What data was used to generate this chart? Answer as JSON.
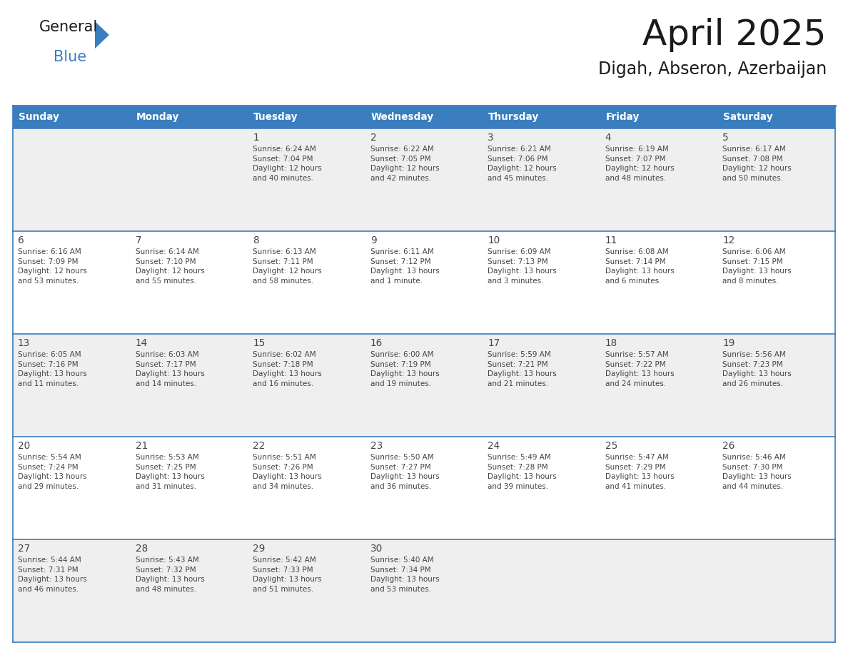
{
  "title": "April 2025",
  "subtitle": "Digah, Abseron, Azerbaijan",
  "header_color": "#3A7EBF",
  "header_text_color": "#FFFFFF",
  "row_colors": [
    "#EFEFEF",
    "#FFFFFF",
    "#EFEFEF",
    "#FFFFFF",
    "#EFEFEF"
  ],
  "border_color": "#3A7EBF",
  "text_color": "#444444",
  "weekdays": [
    "Sunday",
    "Monday",
    "Tuesday",
    "Wednesday",
    "Thursday",
    "Friday",
    "Saturday"
  ],
  "calendar": [
    [
      {
        "day": null,
        "info": null
      },
      {
        "day": null,
        "info": null
      },
      {
        "day": 1,
        "info": "Sunrise: 6:24 AM\nSunset: 7:04 PM\nDaylight: 12 hours\nand 40 minutes."
      },
      {
        "day": 2,
        "info": "Sunrise: 6:22 AM\nSunset: 7:05 PM\nDaylight: 12 hours\nand 42 minutes."
      },
      {
        "day": 3,
        "info": "Sunrise: 6:21 AM\nSunset: 7:06 PM\nDaylight: 12 hours\nand 45 minutes."
      },
      {
        "day": 4,
        "info": "Sunrise: 6:19 AM\nSunset: 7:07 PM\nDaylight: 12 hours\nand 48 minutes."
      },
      {
        "day": 5,
        "info": "Sunrise: 6:17 AM\nSunset: 7:08 PM\nDaylight: 12 hours\nand 50 minutes."
      }
    ],
    [
      {
        "day": 6,
        "info": "Sunrise: 6:16 AM\nSunset: 7:09 PM\nDaylight: 12 hours\nand 53 minutes."
      },
      {
        "day": 7,
        "info": "Sunrise: 6:14 AM\nSunset: 7:10 PM\nDaylight: 12 hours\nand 55 minutes."
      },
      {
        "day": 8,
        "info": "Sunrise: 6:13 AM\nSunset: 7:11 PM\nDaylight: 12 hours\nand 58 minutes."
      },
      {
        "day": 9,
        "info": "Sunrise: 6:11 AM\nSunset: 7:12 PM\nDaylight: 13 hours\nand 1 minute."
      },
      {
        "day": 10,
        "info": "Sunrise: 6:09 AM\nSunset: 7:13 PM\nDaylight: 13 hours\nand 3 minutes."
      },
      {
        "day": 11,
        "info": "Sunrise: 6:08 AM\nSunset: 7:14 PM\nDaylight: 13 hours\nand 6 minutes."
      },
      {
        "day": 12,
        "info": "Sunrise: 6:06 AM\nSunset: 7:15 PM\nDaylight: 13 hours\nand 8 minutes."
      }
    ],
    [
      {
        "day": 13,
        "info": "Sunrise: 6:05 AM\nSunset: 7:16 PM\nDaylight: 13 hours\nand 11 minutes."
      },
      {
        "day": 14,
        "info": "Sunrise: 6:03 AM\nSunset: 7:17 PM\nDaylight: 13 hours\nand 14 minutes."
      },
      {
        "day": 15,
        "info": "Sunrise: 6:02 AM\nSunset: 7:18 PM\nDaylight: 13 hours\nand 16 minutes."
      },
      {
        "day": 16,
        "info": "Sunrise: 6:00 AM\nSunset: 7:19 PM\nDaylight: 13 hours\nand 19 minutes."
      },
      {
        "day": 17,
        "info": "Sunrise: 5:59 AM\nSunset: 7:21 PM\nDaylight: 13 hours\nand 21 minutes."
      },
      {
        "day": 18,
        "info": "Sunrise: 5:57 AM\nSunset: 7:22 PM\nDaylight: 13 hours\nand 24 minutes."
      },
      {
        "day": 19,
        "info": "Sunrise: 5:56 AM\nSunset: 7:23 PM\nDaylight: 13 hours\nand 26 minutes."
      }
    ],
    [
      {
        "day": 20,
        "info": "Sunrise: 5:54 AM\nSunset: 7:24 PM\nDaylight: 13 hours\nand 29 minutes."
      },
      {
        "day": 21,
        "info": "Sunrise: 5:53 AM\nSunset: 7:25 PM\nDaylight: 13 hours\nand 31 minutes."
      },
      {
        "day": 22,
        "info": "Sunrise: 5:51 AM\nSunset: 7:26 PM\nDaylight: 13 hours\nand 34 minutes."
      },
      {
        "day": 23,
        "info": "Sunrise: 5:50 AM\nSunset: 7:27 PM\nDaylight: 13 hours\nand 36 minutes."
      },
      {
        "day": 24,
        "info": "Sunrise: 5:49 AM\nSunset: 7:28 PM\nDaylight: 13 hours\nand 39 minutes."
      },
      {
        "day": 25,
        "info": "Sunrise: 5:47 AM\nSunset: 7:29 PM\nDaylight: 13 hours\nand 41 minutes."
      },
      {
        "day": 26,
        "info": "Sunrise: 5:46 AM\nSunset: 7:30 PM\nDaylight: 13 hours\nand 44 minutes."
      }
    ],
    [
      {
        "day": 27,
        "info": "Sunrise: 5:44 AM\nSunset: 7:31 PM\nDaylight: 13 hours\nand 46 minutes."
      },
      {
        "day": 28,
        "info": "Sunrise: 5:43 AM\nSunset: 7:32 PM\nDaylight: 13 hours\nand 48 minutes."
      },
      {
        "day": 29,
        "info": "Sunrise: 5:42 AM\nSunset: 7:33 PM\nDaylight: 13 hours\nand 51 minutes."
      },
      {
        "day": 30,
        "info": "Sunrise: 5:40 AM\nSunset: 7:34 PM\nDaylight: 13 hours\nand 53 minutes."
      },
      {
        "day": null,
        "info": null
      },
      {
        "day": null,
        "info": null
      },
      {
        "day": null,
        "info": null
      }
    ]
  ],
  "fig_width": 11.88,
  "fig_height": 9.18,
  "dpi": 100
}
